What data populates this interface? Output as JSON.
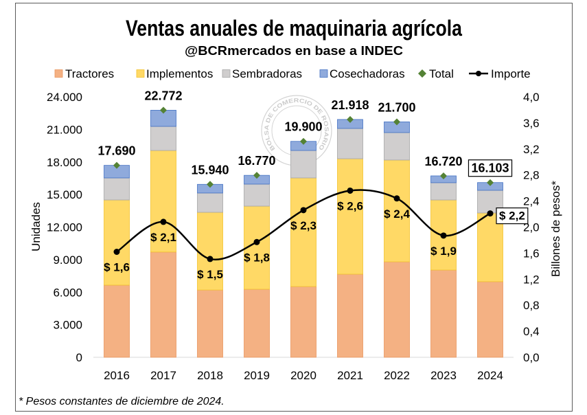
{
  "footnote": "* Pesos constantes de diciembre de 2024.",
  "watermark": "BOLSA DE COMERCIO DE ROSARIO",
  "chart_data": {
    "type": "bar",
    "stacked": true,
    "title": "Ventas anuales de maquinaria agrícola",
    "subtitle": "@BCRmercados en base a INDEC",
    "categories": [
      "2016",
      "2017",
      "2018",
      "2019",
      "2020",
      "2021",
      "2022",
      "2023",
      "2024"
    ],
    "series": [
      {
        "name": "Tractores",
        "type": "bar",
        "axis": "left",
        "color": "#F4B183",
        "edge": "#E9965E",
        "values": [
          6650,
          9700,
          6200,
          6270,
          6520,
          7660,
          8800,
          8040,
          6970
        ]
      },
      {
        "name": "Implementos",
        "type": "bar",
        "axis": "left",
        "color": "#FFD966",
        "edge": "#F2C12E",
        "values": [
          7850,
          9360,
          7160,
          7660,
          10010,
          10640,
          9380,
          6460,
          6330
        ]
      },
      {
        "name": "Sembradoras",
        "type": "bar",
        "axis": "left",
        "color": "#D0CECE",
        "edge": "#A6A6A6",
        "values": [
          2030,
          2220,
          1780,
          2030,
          2530,
          2790,
          2530,
          1590,
          2090
        ]
      },
      {
        "name": "Cosechadoras",
        "type": "bar",
        "axis": "left",
        "color": "#8FAADC",
        "edge": "#4472C4",
        "values": [
          1160,
          1492,
          800,
          810,
          840,
          828,
          990,
          630,
          713
        ]
      },
      {
        "name": "Total",
        "type": "marker",
        "axis": "left",
        "color": "#548235",
        "values": [
          17690,
          22772,
          15940,
          16770,
          19900,
          21918,
          21700,
          16720,
          16103
        ],
        "labels": [
          "17.690",
          "22.772",
          "15.940",
          "16.770",
          "19.900",
          "21.918",
          "21.700",
          "16.720",
          "16.103"
        ]
      },
      {
        "name": "Importe",
        "type": "line",
        "axis": "right",
        "smooth": true,
        "color": "#000000",
        "values": [
          1.62,
          2.08,
          1.51,
          1.77,
          2.26,
          2.56,
          2.44,
          1.87,
          2.21
        ],
        "labels": [
          "$ 1,6",
          "$ 2,1",
          "$ 1,5",
          "$ 1,8",
          "$ 2,3",
          "$ 2,6",
          "$ 2,4",
          "$ 1,9",
          "$ 2,2"
        ]
      }
    ],
    "ylabel": "Unidades",
    "y2label": "Billones de pesos*",
    "ylim": [
      0,
      24000
    ],
    "y2lim": [
      0,
      4
    ],
    "yticks": [
      0,
      3000,
      6000,
      9000,
      12000,
      15000,
      18000,
      21000,
      24000
    ],
    "ytick_labels": [
      "0",
      "3.000",
      "6.000",
      "9.000",
      "12.000",
      "15.000",
      "18.000",
      "21.000",
      "24.000"
    ],
    "y2ticks": [
      0,
      0.4,
      0.8,
      1.2,
      1.6,
      2.0,
      2.4,
      2.8,
      3.2,
      3.6,
      4.0
    ],
    "y2tick_labels": [
      "0,0",
      "0,4",
      "0,8",
      "1,2",
      "1,6",
      "2,0",
      "2,4",
      "2,8",
      "3,2",
      "3,6",
      "4,0"
    ],
    "grid": false,
    "legend": "top"
  }
}
